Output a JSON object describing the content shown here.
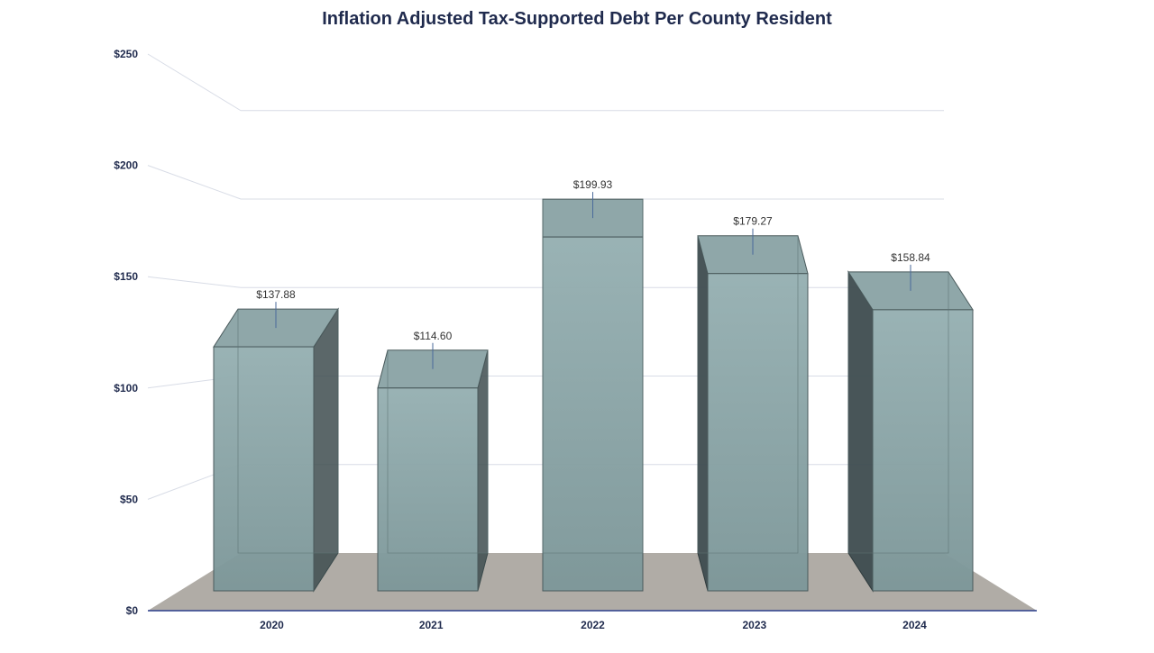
{
  "chart_data": {
    "type": "bar",
    "title": "Inflation Adjusted Tax-Supported Debt Per County Resident",
    "xlabel": "",
    "ylabel": "",
    "categories": [
      "2020",
      "2021",
      "2022",
      "2023",
      "2024"
    ],
    "values": [
      137.88,
      114.6,
      199.93,
      179.27,
      158.84
    ],
    "data_labels": [
      "$137.88",
      "$114.60",
      "$199.93",
      "$179.27",
      "$158.84"
    ],
    "ylim": [
      0,
      250
    ],
    "yticks": [
      0,
      50,
      100,
      150,
      200,
      250
    ],
    "ytick_labels": [
      "$0",
      "$50",
      "$100",
      "$150",
      "$200",
      "$250"
    ],
    "grid": true,
    "legend": "none",
    "style": "3d-column",
    "colors": {
      "bar": "#7d9799",
      "bar_side": "#3e4c4f",
      "floor": "#b0aca6",
      "axis": "#2c3e8c",
      "grid": "#d8dce6",
      "text": "#1f2a4d"
    }
  }
}
